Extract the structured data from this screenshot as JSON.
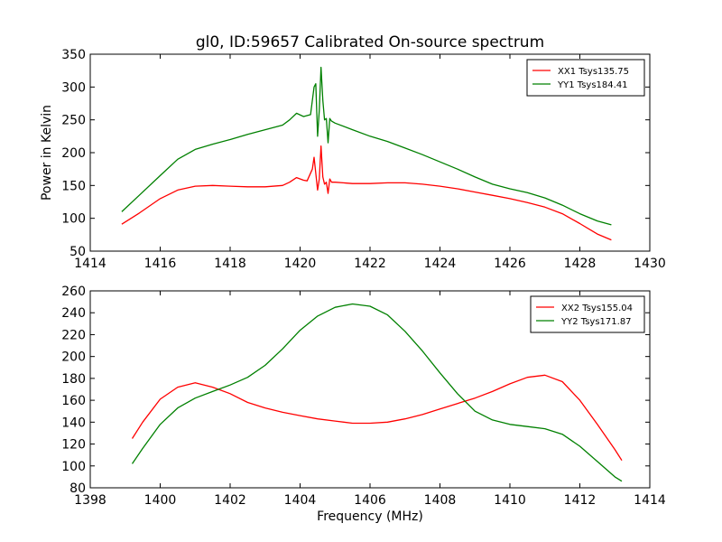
{
  "chart_data": [
    {
      "type": "line",
      "title": "gl0, ID:59657 Calibrated On-source spectrum",
      "xlabel": "",
      "ylabel": "Power in Kelvin",
      "xlim": [
        1414,
        1430
      ],
      "ylim": [
        50,
        350
      ],
      "x_ticks": [
        1414,
        1416,
        1418,
        1420,
        1422,
        1424,
        1426,
        1428,
        1430
      ],
      "y_ticks": [
        50,
        100,
        150,
        200,
        250,
        300,
        350
      ],
      "legend_position": "top-right",
      "grid": false,
      "series": [
        {
          "name": "XX1 Tsys135.75",
          "color": "#ff0000",
          "x": [
            1414.9,
            1415.4,
            1416.0,
            1416.5,
            1417.0,
            1417.5,
            1418.0,
            1418.5,
            1419.0,
            1419.5,
            1419.7,
            1419.9,
            1420.1,
            1420.2,
            1420.35,
            1420.4,
            1420.5,
            1420.55,
            1420.6,
            1420.65,
            1420.7,
            1420.75,
            1420.8,
            1420.85,
            1420.9,
            1421.0,
            1421.5,
            1422.0,
            1422.5,
            1423.0,
            1423.5,
            1424.0,
            1424.5,
            1425.0,
            1425.5,
            1426.0,
            1426.5,
            1427.0,
            1427.5,
            1428.0,
            1428.5,
            1428.9
          ],
          "values": [
            91,
            108,
            130,
            143,
            149,
            150,
            149,
            148,
            148,
            150,
            155,
            162,
            158,
            157,
            175,
            193,
            143,
            160,
            210,
            163,
            152,
            155,
            138,
            160,
            155,
            155,
            153,
            153,
            154,
            154,
            152,
            149,
            145,
            140,
            135,
            130,
            124,
            117,
            107,
            92,
            76,
            67
          ]
        },
        {
          "name": "YY1 Tsys184.41",
          "color": "#008000",
          "x": [
            1414.9,
            1415.4,
            1416.0,
            1416.5,
            1417.0,
            1417.5,
            1418.0,
            1418.5,
            1419.0,
            1419.5,
            1419.7,
            1419.9,
            1420.1,
            1420.3,
            1420.4,
            1420.45,
            1420.5,
            1420.55,
            1420.6,
            1420.65,
            1420.7,
            1420.75,
            1420.8,
            1420.85,
            1420.9,
            1421.0,
            1421.5,
            1422.0,
            1422.5,
            1423.0,
            1423.5,
            1424.0,
            1424.5,
            1425.0,
            1425.5,
            1426.0,
            1426.5,
            1427.0,
            1427.5,
            1428.0,
            1428.5,
            1428.9
          ],
          "values": [
            110,
            135,
            165,
            190,
            205,
            213,
            220,
            228,
            235,
            242,
            250,
            260,
            255,
            258,
            300,
            305,
            225,
            265,
            330,
            280,
            250,
            252,
            215,
            252,
            248,
            245,
            235,
            225,
            217,
            207,
            197,
            186,
            175,
            163,
            152,
            145,
            139,
            131,
            120,
            107,
            96,
            90
          ]
        }
      ]
    },
    {
      "type": "line",
      "title": "",
      "xlabel": "Frequency (MHz)",
      "ylabel": "",
      "xlim": [
        1398,
        1414
      ],
      "ylim": [
        80,
        260
      ],
      "x_ticks": [
        1398,
        1400,
        1402,
        1404,
        1406,
        1408,
        1410,
        1412,
        1414
      ],
      "y_ticks": [
        80,
        100,
        120,
        140,
        160,
        180,
        200,
        220,
        240,
        260
      ],
      "legend_position": "top-right",
      "grid": false,
      "series": [
        {
          "name": "XX2 Tsys155.04",
          "color": "#ff0000",
          "x": [
            1399.2,
            1399.5,
            1400.0,
            1400.5,
            1401.0,
            1401.5,
            1402.0,
            1402.5,
            1403.0,
            1403.5,
            1404.0,
            1404.5,
            1405.0,
            1405.5,
            1406.0,
            1406.5,
            1407.0,
            1407.5,
            1408.0,
            1408.5,
            1409.0,
            1409.5,
            1410.0,
            1410.5,
            1411.0,
            1411.5,
            1412.0,
            1412.5,
            1413.0,
            1413.2
          ],
          "values": [
            125,
            140,
            161,
            172,
            176,
            172,
            166,
            158,
            153,
            149,
            146,
            143,
            141,
            139,
            139,
            140,
            143,
            147,
            152,
            157,
            162,
            168,
            175,
            181,
            183,
            177,
            160,
            138,
            115,
            105
          ]
        },
        {
          "name": "YY2 Tsys171.87",
          "color": "#008000",
          "x": [
            1399.2,
            1399.5,
            1400.0,
            1400.5,
            1401.0,
            1401.5,
            1402.0,
            1402.5,
            1403.0,
            1403.5,
            1404.0,
            1404.5,
            1405.0,
            1405.5,
            1406.0,
            1406.5,
            1407.0,
            1407.5,
            1408.0,
            1408.5,
            1409.0,
            1409.5,
            1410.0,
            1410.5,
            1411.0,
            1411.5,
            1412.0,
            1412.5,
            1413.0,
            1413.2
          ],
          "values": [
            102,
            116,
            138,
            153,
            162,
            168,
            174,
            181,
            192,
            207,
            224,
            237,
            245,
            248,
            246,
            238,
            223,
            205,
            185,
            166,
            150,
            142,
            138,
            136,
            134,
            129,
            118,
            104,
            90,
            86
          ]
        }
      ]
    }
  ]
}
